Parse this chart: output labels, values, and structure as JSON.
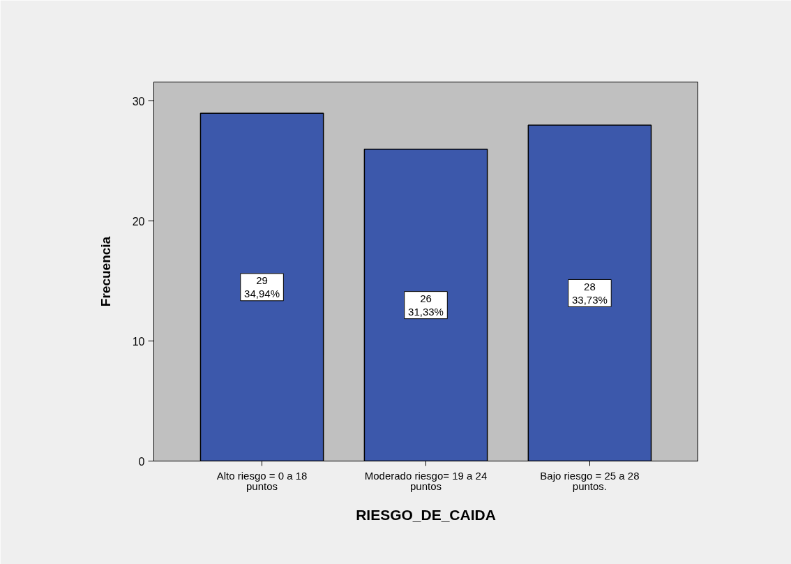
{
  "chart_data": {
    "type": "bar",
    "xlabel": "RIESGO_DE_CAIDA",
    "ylabel": "Frecuencia",
    "categories": [
      "Alto riesgo = 0 a 18 puntos",
      "Moderado riesgo= 19 a 24 puntos",
      "Bajo riesgo = 25 a 28 puntos."
    ],
    "values": [
      29,
      26,
      28
    ],
    "color": "#3c58ab",
    "value_labels": [
      "29\n34,94%",
      "26\n31,33%",
      "28\n33,73%"
    ],
    "ylim": [
      0,
      31.6
    ],
    "yticks": [
      0,
      10,
      20,
      30
    ],
    "grid": false
  }
}
